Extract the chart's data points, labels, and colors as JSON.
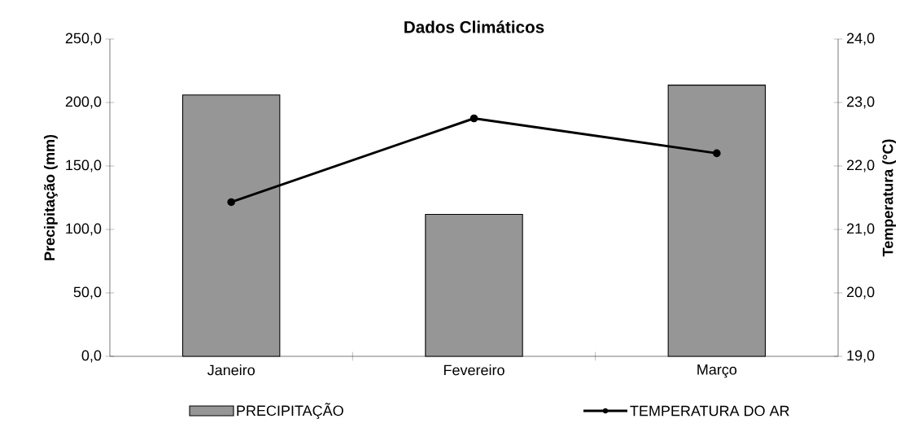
{
  "chart_data": {
    "type": "bar",
    "title": "Dados Climáticos",
    "ylabel": "Precipitação (mm)",
    "y2label": "Temperatura (°C)",
    "categories": [
      "Janeiro",
      "Fevereiro",
      "Março"
    ],
    "series": [
      {
        "name": "PRECIPITAÇÃO",
        "color": "#969696",
        "values": [
          205.9,
          111.9,
          213.7
        ]
      },
      {
        "name": "TEMPERATURA DO AR",
        "type": "line",
        "axis": "y2",
        "color": "#000000",
        "marker": "circle",
        "values": [
          21.43,
          22.75,
          22.2
        ]
      }
    ],
    "ylim": [
      0,
      250
    ],
    "yticks": [
      {
        "value": 0,
        "label": "0,0"
      },
      {
        "value": 50,
        "label": "50,0"
      },
      {
        "value": 100,
        "label": "100,0"
      },
      {
        "value": 150,
        "label": "150,0"
      },
      {
        "value": 200,
        "label": "200,0"
      },
      {
        "value": 250,
        "label": "250,0"
      }
    ],
    "y2lim": [
      19,
      24
    ],
    "y2ticks": [
      {
        "value": 19,
        "label": "19,0"
      },
      {
        "value": 20,
        "label": "20,0"
      },
      {
        "value": 21,
        "label": "21,0"
      },
      {
        "value": 22,
        "label": "22,0"
      },
      {
        "value": 23,
        "label": "23,0"
      },
      {
        "value": 24,
        "label": "24,0"
      }
    ],
    "legend": "bottom"
  }
}
